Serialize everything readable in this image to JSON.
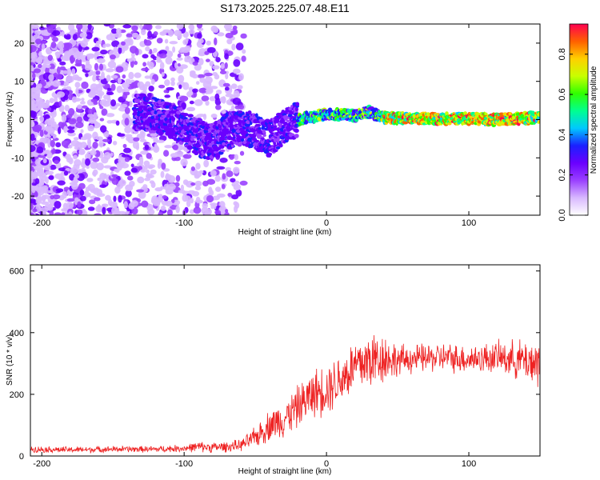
{
  "title": "S173.2025.225.07.48.E11",
  "colorbar": {
    "label": "Normalized spectral amplitude",
    "range": [
      0,
      0.95
    ],
    "ticks": [
      0.0,
      0.2,
      0.4,
      0.6,
      0.8
    ],
    "tick_labels": [
      "0.0",
      "0.2",
      "0.4",
      "0.6",
      "0.8"
    ],
    "colors": [
      "#ffffff",
      "#d8b8ff",
      "#9a40ff",
      "#6a00ff",
      "#1a20ff",
      "#00c8ff",
      "#00ff90",
      "#30ff00",
      "#c8ff00",
      "#ffd000",
      "#ff6000",
      "#ff0050"
    ]
  },
  "chart_data": [
    {
      "type": "heatmap",
      "title": "S173.2025.225.07.48.E11",
      "xlabel": "Height of straight line (km)",
      "ylabel": "Frequency (Hz)",
      "xlim": [
        -208,
        150
      ],
      "ylim": [
        -25,
        25
      ],
      "xticks": [
        -200,
        -100,
        0,
        100
      ],
      "xtick_labels": [
        "-200",
        "-100",
        "0",
        "100"
      ],
      "yticks": [
        -20,
        -10,
        0,
        10,
        20
      ],
      "ytick_labels": [
        "-20",
        "-10",
        "0",
        "10",
        "20"
      ],
      "ridge": {
        "x": [
          -130,
          -110,
          -100,
          -90,
          -80,
          -70,
          -60,
          -50,
          -40,
          -30,
          -20,
          0,
          20,
          30,
          40,
          60,
          80,
          100,
          120,
          150
        ],
        "y": [
          2,
          0,
          -2,
          -5,
          -6,
          -3,
          -2,
          -3,
          -5,
          -2,
          0,
          1.5,
          1,
          2,
          0.5,
          0.3,
          0.2,
          0.3,
          0,
          0.5
        ]
      }
    },
    {
      "type": "line",
      "xlabel": "Height of straight line (km)",
      "ylabel": "SNR (10 * v/v)",
      "xlim": [
        -208,
        150
      ],
      "ylim": [
        0,
        620
      ],
      "xticks": [
        -200,
        -100,
        0,
        100
      ],
      "xtick_labels": [
        "-200",
        "-100",
        "0",
        "100"
      ],
      "yticks": [
        0,
        200,
        400,
        600
      ],
      "ytick_labels": [
        "0",
        "200",
        "400",
        "600"
      ],
      "series": [
        {
          "name": "SNR",
          "color": "#ee2222",
          "x": [
            -208,
            -180,
            -150,
            -120,
            -100,
            -90,
            -80,
            -70,
            -60,
            -50,
            -40,
            -30,
            -20,
            -10,
            0,
            10,
            20,
            30,
            40,
            50,
            60,
            80,
            100,
            120,
            140,
            150
          ],
          "y": [
            22,
            20,
            22,
            22,
            25,
            30,
            28,
            30,
            35,
            60,
            100,
            120,
            160,
            200,
            220,
            250,
            290,
            310,
            320,
            310,
            315,
            320,
            315,
            320,
            310,
            300
          ],
          "spread": [
            12,
            12,
            12,
            12,
            14,
            20,
            20,
            20,
            22,
            40,
            60,
            70,
            80,
            90,
            100,
            100,
            110,
            120,
            100,
            60,
            55,
            55,
            55,
            60,
            80,
            110
          ]
        }
      ]
    }
  ]
}
